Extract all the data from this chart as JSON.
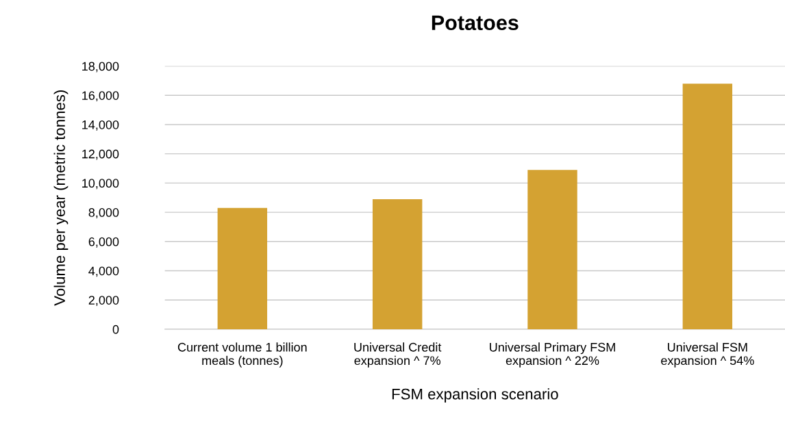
{
  "chart_data": {
    "type": "bar",
    "title": "Potatoes",
    "xlabel": "FSM expansion scenario",
    "ylabel": "Volume per year (metric tonnes)",
    "categories": [
      "Current volume 1 billion\nmeals (tonnes)",
      "Universal Credit\nexpansion ^ 7%",
      "Universal Primary FSM\nexpansion ^ 22%",
      "Universal FSM\nexpansion ^ 54%"
    ],
    "values": [
      8300,
      8900,
      10900,
      16800
    ],
    "color": "#d4a232",
    "ylim": [
      0,
      18000
    ],
    "yticks": [
      {
        "value": 0,
        "label": "0"
      },
      {
        "value": 2000,
        "label": "2,000"
      },
      {
        "value": 4000,
        "label": "4,000"
      },
      {
        "value": 6000,
        "label": "6,000"
      },
      {
        "value": 8000,
        "label": "8,000"
      },
      {
        "value": 10000,
        "label": "10,000"
      },
      {
        "value": 12000,
        "label": "12,000"
      },
      {
        "value": 14000,
        "label": "14,000"
      },
      {
        "value": 16000,
        "label": "16,000"
      },
      {
        "value": 18000,
        "label": "18,000"
      }
    ],
    "grid": "y"
  }
}
